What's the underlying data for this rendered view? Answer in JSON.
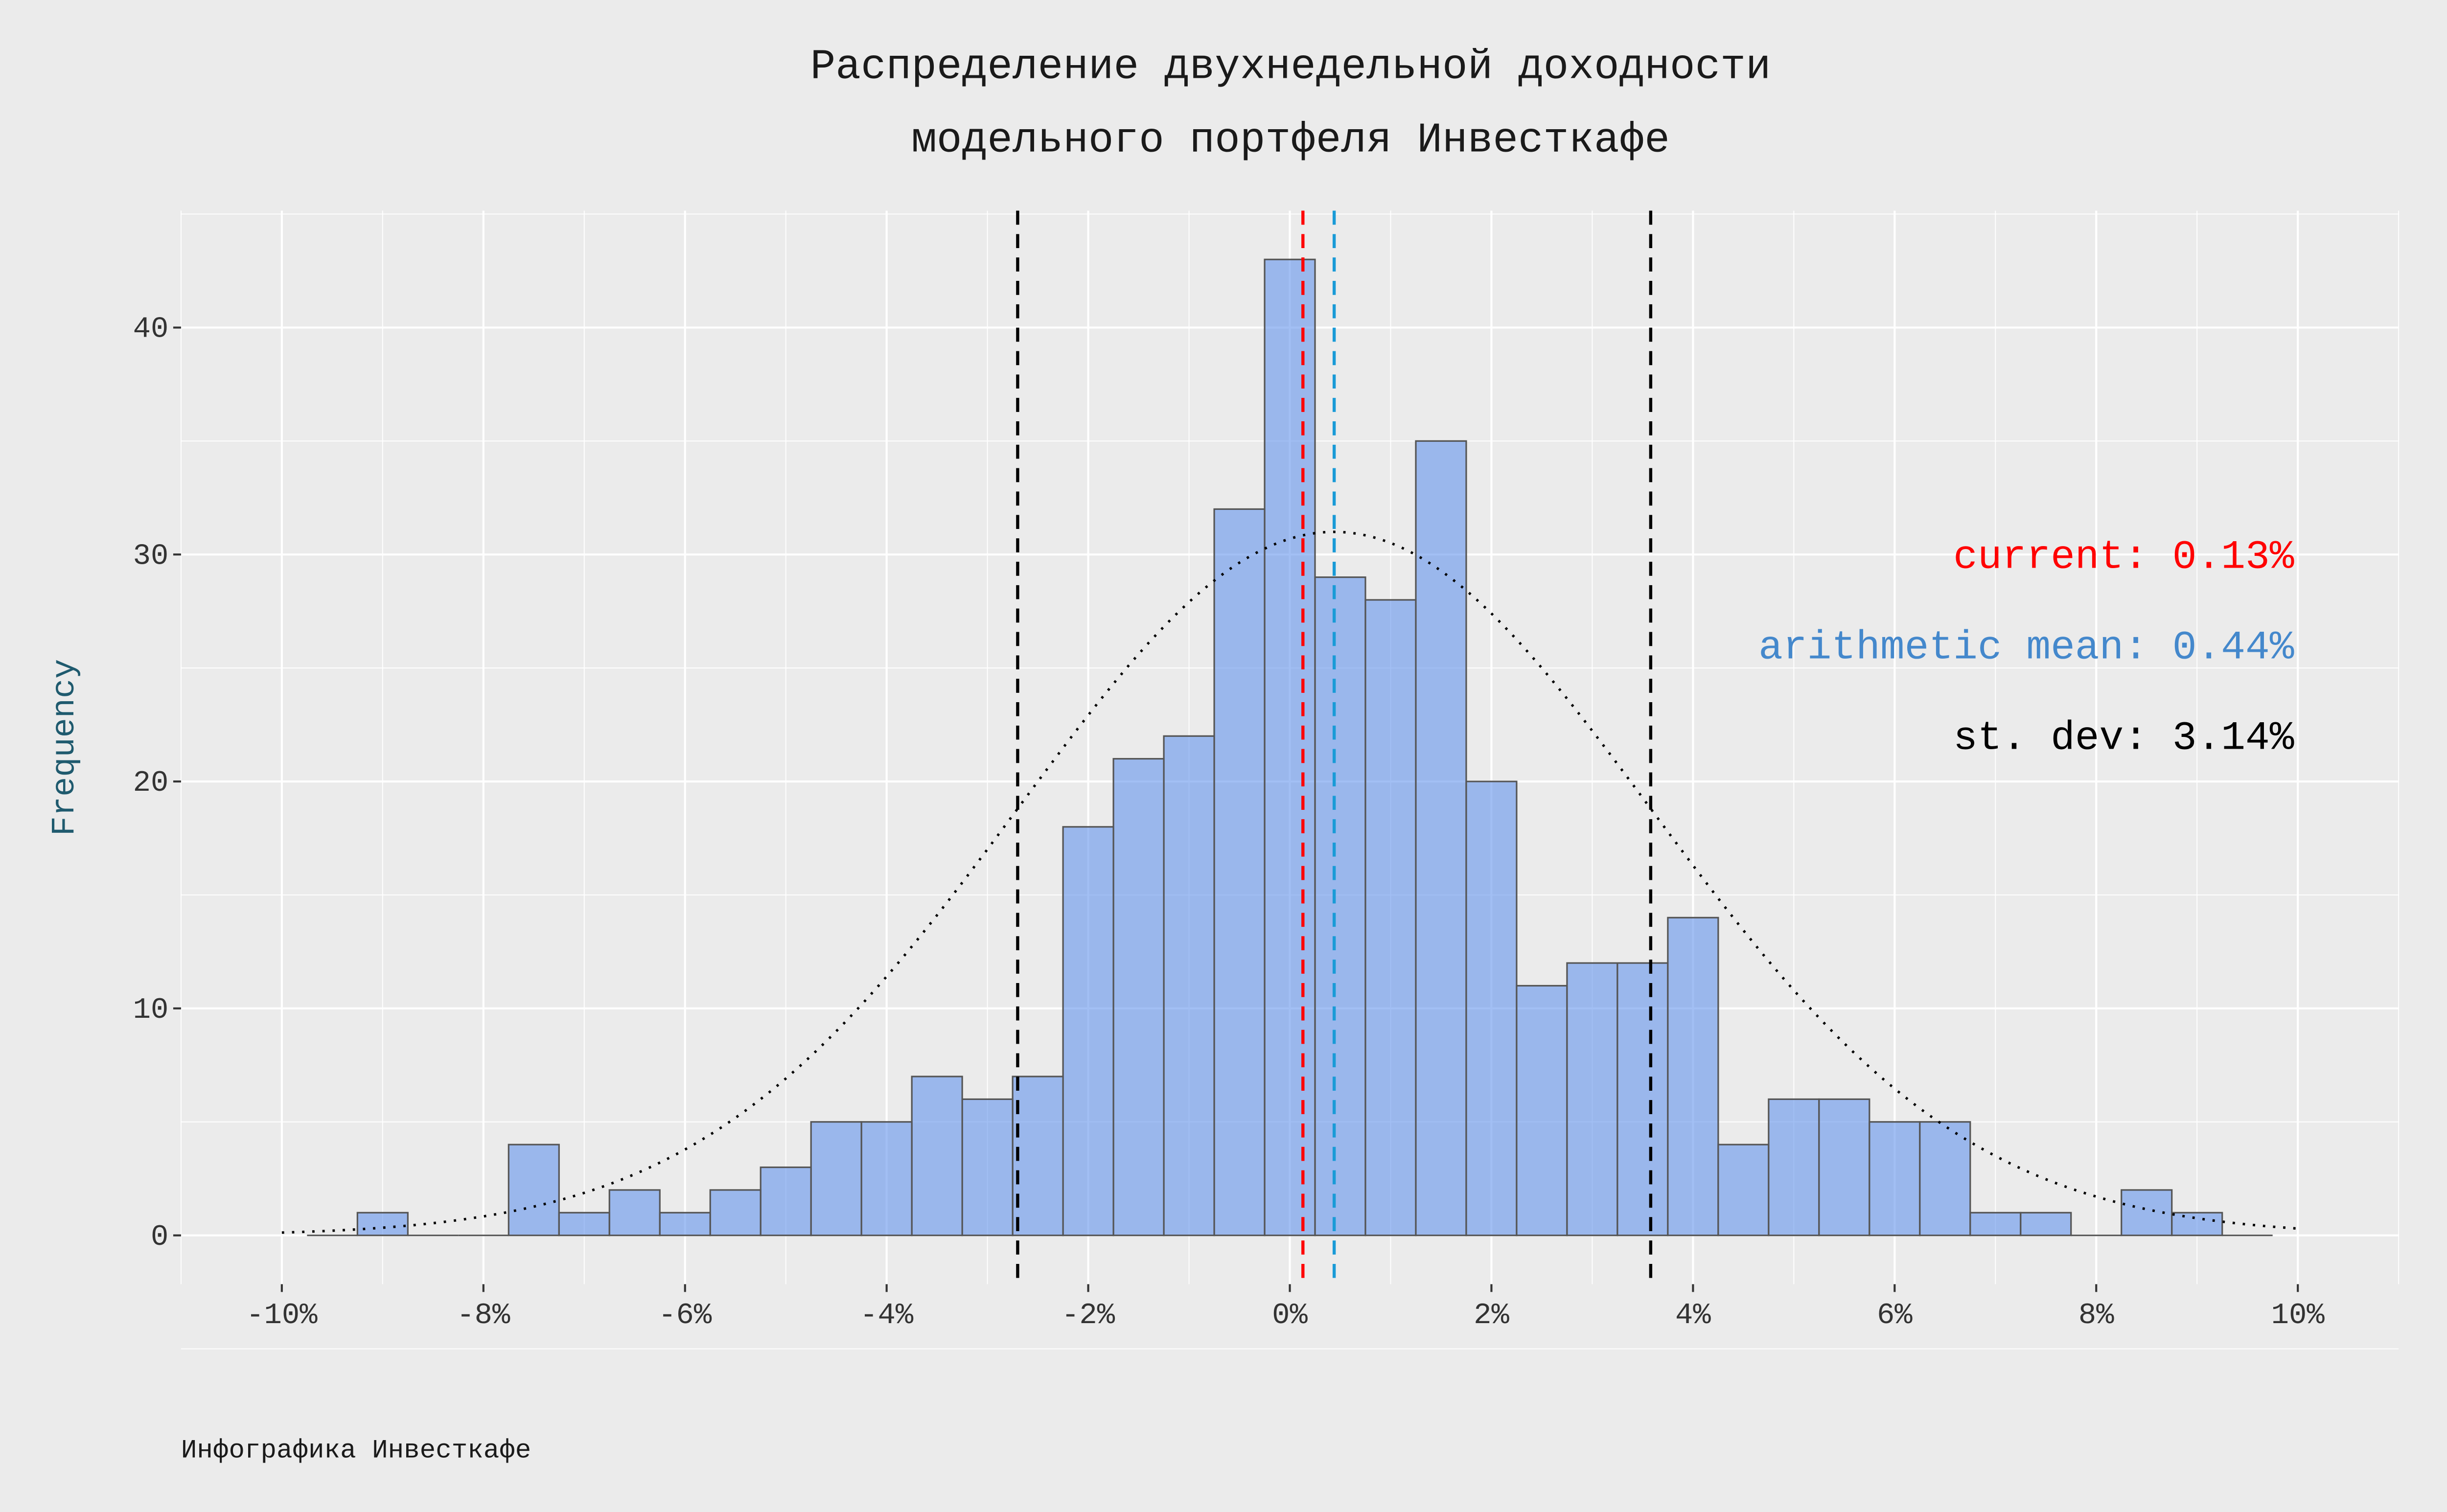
{
  "chart_data": {
    "type": "bar",
    "subtype": "histogram",
    "title": [
      "Распределение двухнедельной доходности",
      "модельного портфеля Инвесткафе"
    ],
    "xlabel": "",
    "ylabel": "Frequency",
    "caption": "Инфографика Инвесткафе",
    "xlim": [
      -11,
      11
    ],
    "ylim": [
      -2.15,
      45.15
    ],
    "grid": true,
    "bin_width": 0.5,
    "bin_centers": [
      -9.5,
      -9,
      -8.5,
      -8,
      -7.5,
      -7,
      -6.5,
      -6,
      -5.5,
      -5,
      -4.5,
      -4,
      -3.5,
      -3,
      -2.5,
      -2,
      -1.5,
      -1,
      -0.5,
      0,
      0.5,
      1,
      1.5,
      2,
      2.5,
      3,
      3.5,
      4,
      4.5,
      5,
      5.5,
      6,
      6.5,
      7,
      7.5,
      8,
      8.5,
      9,
      9.5
    ],
    "values": [
      0,
      1,
      0,
      0,
      4,
      1,
      2,
      1,
      2,
      3,
      5,
      5,
      7,
      6,
      7,
      18,
      21,
      22,
      32,
      43,
      29,
      28,
      35,
      20,
      11,
      12,
      12,
      14,
      4,
      6,
      6,
      5,
      5,
      1,
      1,
      0,
      2,
      1,
      0
    ],
    "x_ticks": [
      -10,
      -8,
      -6,
      -4,
      -2,
      0,
      2,
      4,
      6,
      8,
      10
    ],
    "x_tick_labels": [
      "-10%",
      "-8%",
      "-6%",
      "-4%",
      "-2%",
      "0%",
      "2%",
      "4%",
      "6%",
      "8%",
      "10%"
    ],
    "y_ticks": [
      0,
      10,
      20,
      30,
      40
    ],
    "y_tick_labels": [
      "0",
      "10",
      "20",
      "30",
      "40"
    ],
    "normal_curve": {
      "mean": 0.44,
      "sd": 3.14,
      "peak": 31,
      "range": [
        -10,
        10
      ]
    },
    "vlines": [
      {
        "name": "current",
        "x": 0.13,
        "color": "#ff0000"
      },
      {
        "name": "mean",
        "x": 0.44,
        "color": "#1a9bd7"
      },
      {
        "name": "mean-minus-sd",
        "x": -2.7,
        "color": "#000000"
      },
      {
        "name": "mean-plus-sd",
        "x": 3.58,
        "color": "#000000"
      }
    ],
    "annotations": [
      {
        "text": "current: 0.13%",
        "color": "#ff0000"
      },
      {
        "text": "arithmetic mean: 0.44%",
        "color": "#4488cc"
      },
      {
        "text": "st. dev: 3.14%",
        "color": "#000000"
      }
    ],
    "colors": {
      "bar_fill": "#6495ed",
      "bar_stroke": "#555555",
      "panel": "#ebebeb",
      "grid": "#ffffff"
    }
  }
}
